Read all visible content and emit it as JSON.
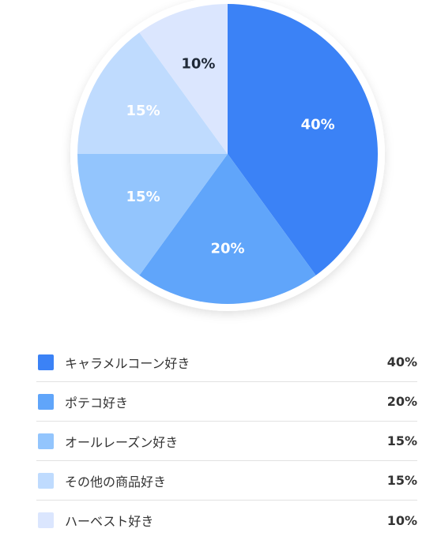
{
  "chart_data": {
    "type": "pie",
    "title": "",
    "slices": [
      {
        "label": "キャラメルコーン好き",
        "value": 40,
        "display": "40%",
        "color": "#3b82f6",
        "text_color": "#ffffff"
      },
      {
        "label": "ポテコ好き",
        "value": 20,
        "display": "20%",
        "color": "#60a5fa",
        "text_color": "#ffffff"
      },
      {
        "label": "オールレーズン好き",
        "value": 15,
        "display": "15%",
        "color": "#93c5fd",
        "text_color": "#ffffff"
      },
      {
        "label": "その他の商品好き",
        "value": 15,
        "display": "15%",
        "color": "#bfdbfe",
        "text_color": "#ffffff"
      },
      {
        "label": "ハーベスト好き",
        "value": 10,
        "display": "10%",
        "color": "#dbe6fe",
        "text_color": "#1f2937"
      }
    ],
    "legend_placement": "bottom"
  }
}
